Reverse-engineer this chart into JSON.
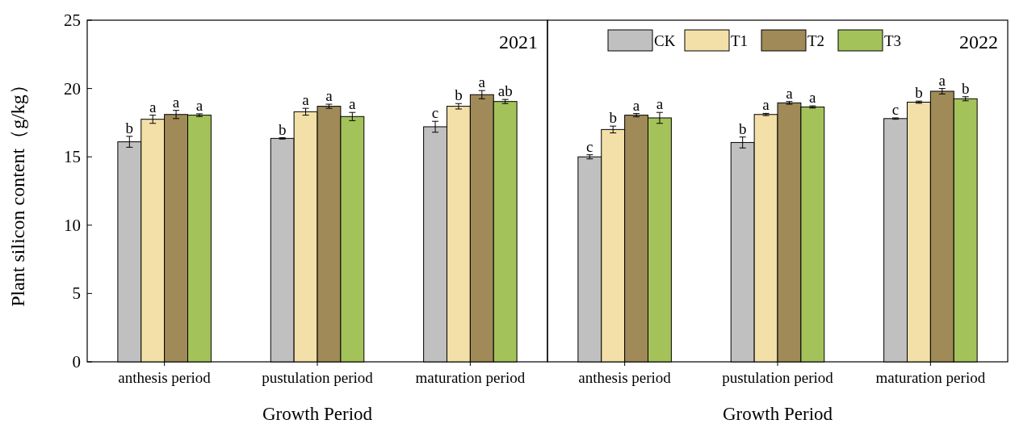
{
  "chart_data": [
    {
      "type": "bar",
      "title": "2021",
      "xlabel": "Growth Period",
      "ylabel": "Plant silicon content（g/kg）",
      "categories": [
        "anthesis period",
        "pustulation period",
        "maturation period"
      ],
      "ylim": [
        0,
        25
      ],
      "yticks": [
        0,
        5,
        10,
        15,
        20,
        25
      ],
      "series": [
        {
          "color": "#c0c0c0",
          "values": [
            16.1,
            16.35,
            17.2
          ],
          "errors": [
            0.4,
            0.05,
            0.4
          ],
          "value_labels": [
            "b",
            "b",
            "c"
          ]
        },
        {
          "color": "#f2e0a8",
          "values": [
            17.75,
            18.3,
            18.7
          ],
          "errors": [
            0.3,
            0.25,
            0.2
          ],
          "value_labels": [
            "a",
            "a",
            "b"
          ]
        },
        {
          "color": "#a08a58",
          "values": [
            18.1,
            18.7,
            19.55
          ],
          "errors": [
            0.3,
            0.15,
            0.3
          ],
          "value_labels": [
            "a",
            "a",
            "a"
          ]
        },
        {
          "color": "#a3c35a",
          "values": [
            18.05,
            17.95,
            19.05
          ],
          "errors": [
            0.1,
            0.3,
            0.15
          ],
          "value_labels": [
            "a",
            "a",
            "ab"
          ]
        }
      ]
    },
    {
      "type": "bar",
      "title": "2022",
      "xlabel": "Growth Period",
      "categories": [
        "anthesis period",
        "pustulation period",
        "maturation period"
      ],
      "ylim": [
        0,
        25
      ],
      "tick_labels": "x",
      "legend": "top",
      "series": [
        {
          "name": "CK",
          "color": "#c0c0c0",
          "values": [
            15.0,
            16.05,
            17.8
          ],
          "errors": [
            0.15,
            0.4,
            0.05
          ],
          "value_labels": [
            "c",
            "b",
            "c"
          ]
        },
        {
          "name": "T1",
          "color": "#f2e0a8",
          "values": [
            17.0,
            18.1,
            19.0
          ],
          "errors": [
            0.25,
            0.08,
            0.08
          ],
          "value_labels": [
            "b",
            "a",
            "b"
          ]
        },
        {
          "name": "T2",
          "color": "#a08a58",
          "values": [
            18.05,
            18.95,
            19.8
          ],
          "errors": [
            0.12,
            0.1,
            0.2
          ],
          "value_labels": [
            "a",
            "a",
            "a"
          ]
        },
        {
          "name": "T3",
          "color": "#a3c35a",
          "values": [
            17.85,
            18.65,
            19.25
          ],
          "errors": [
            0.4,
            0.08,
            0.15
          ],
          "value_labels": [
            "a",
            "a",
            "b"
          ]
        }
      ]
    }
  ]
}
